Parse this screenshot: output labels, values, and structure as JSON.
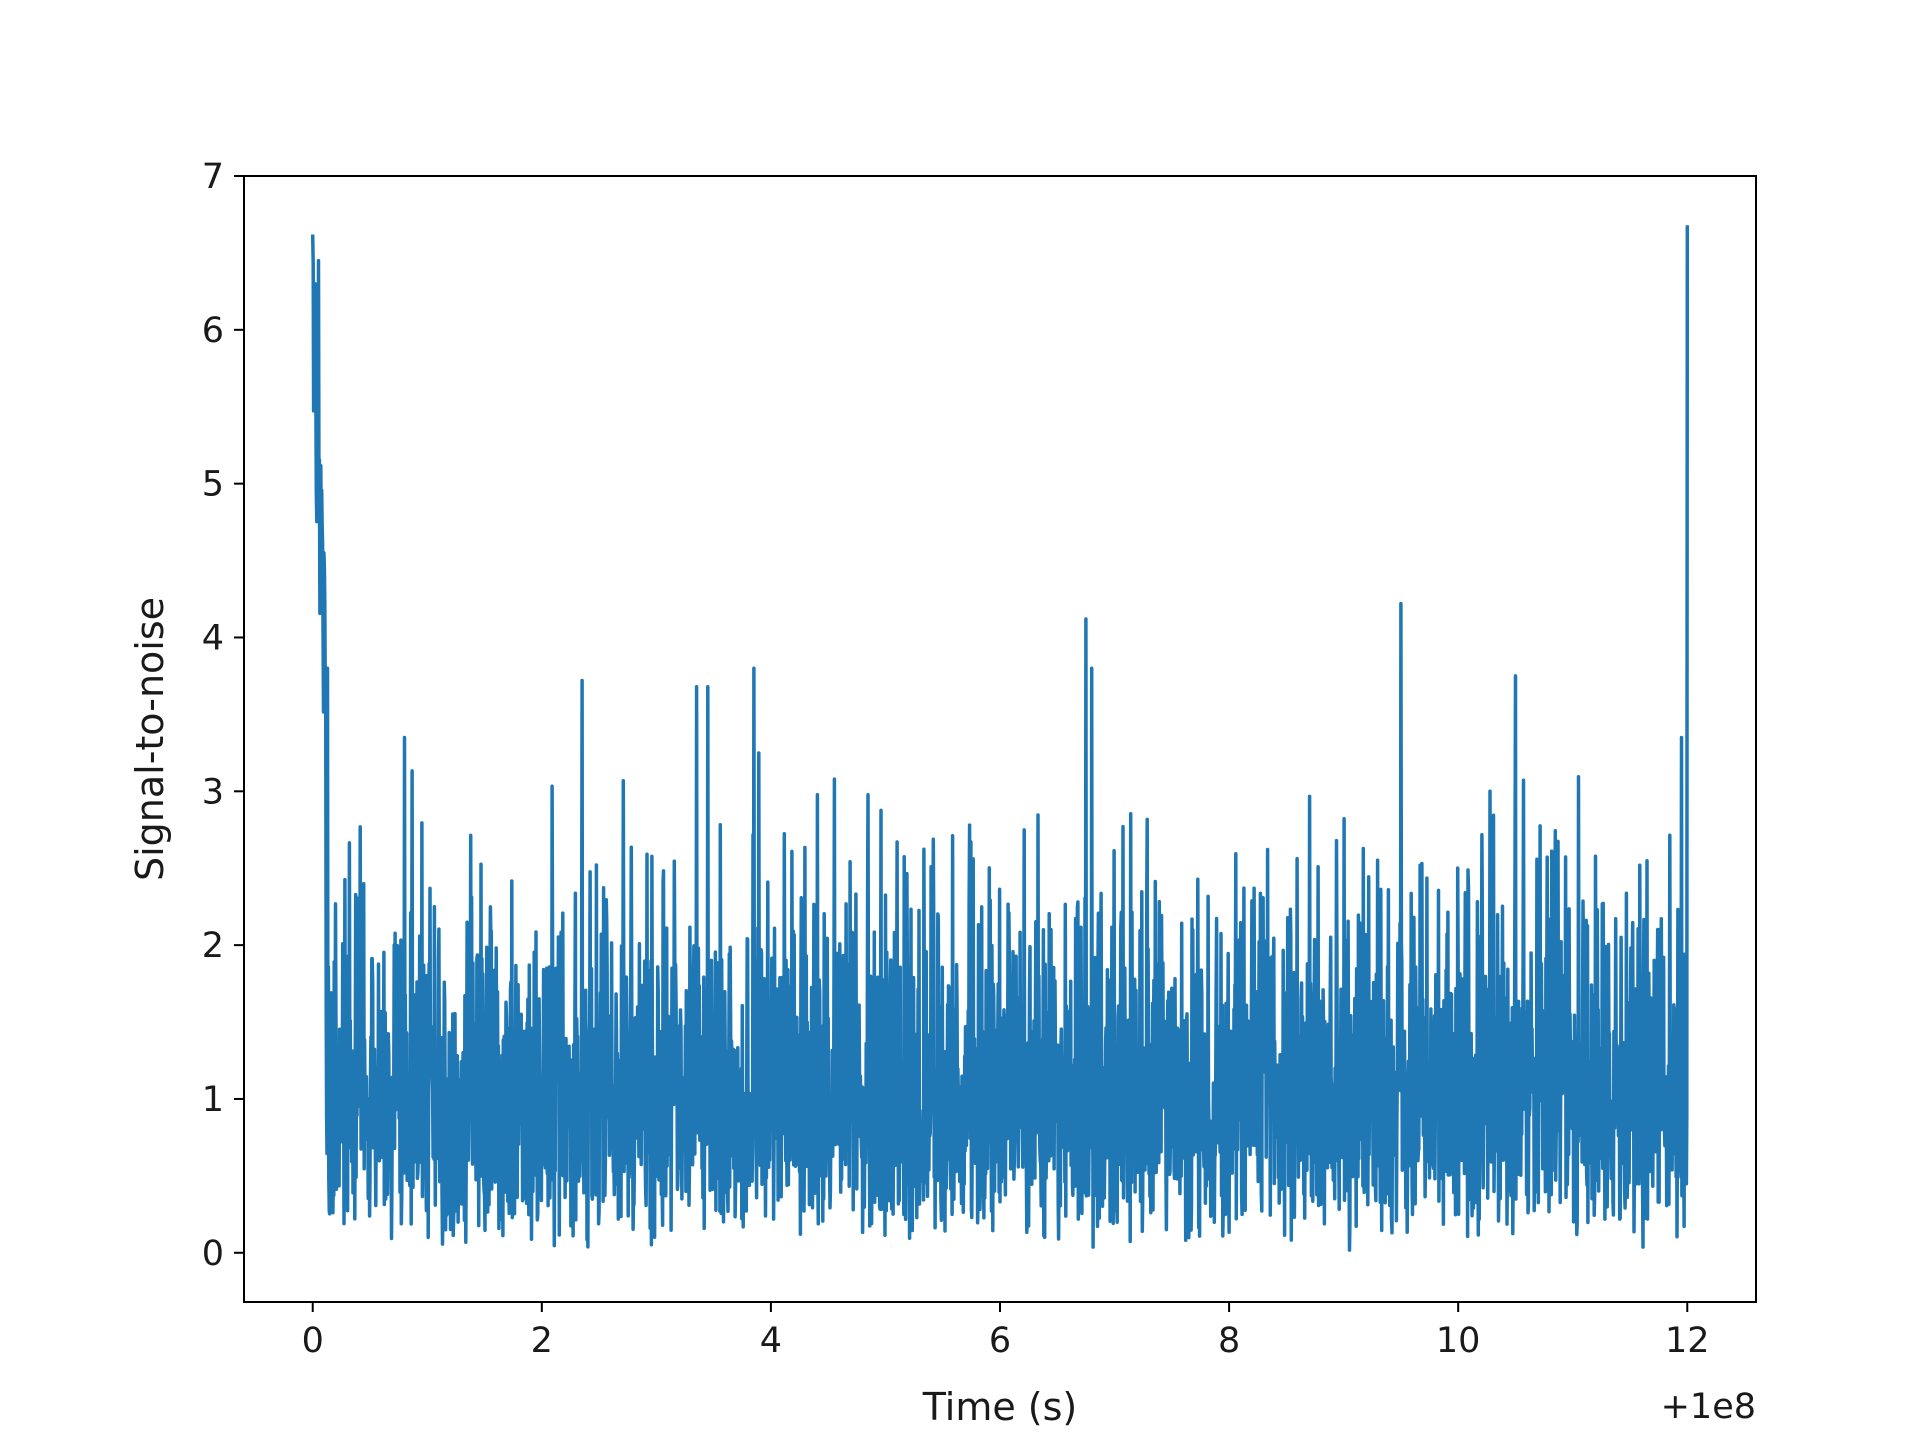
{
  "chart_data": {
    "type": "line",
    "title": "",
    "xlabel": "Time (s)",
    "ylabel": "Signal-to-noise",
    "x_offset_label": "+1e8",
    "xlim": [
      -0.6,
      12.6
    ],
    "ylim": [
      -0.32,
      7.0
    ],
    "xticks": [
      0,
      2,
      4,
      6,
      8,
      10,
      12
    ],
    "xtick_labels": [
      "0",
      "2",
      "4",
      "6",
      "8",
      "10",
      "12"
    ],
    "yticks": [
      0,
      1,
      2,
      3,
      4,
      5,
      6,
      7
    ],
    "ytick_labels": [
      "0",
      "1",
      "2",
      "3",
      "4",
      "5",
      "6",
      "7"
    ],
    "grid": false,
    "series": [
      {
        "color": "#1f77b4",
        "x_range": [
          0,
          12
        ],
        "points_per_second": 256,
        "baseline_mean": 1.1,
        "baseline_envelope": [
          0.0,
          2.4
        ],
        "peaks": [
          {
            "x": 0.0,
            "y": 6.62
          },
          {
            "x": 0.02,
            "y": 6.3
          },
          {
            "x": 0.05,
            "y": 6.45
          },
          {
            "x": 0.1,
            "y": 4.45
          },
          {
            "x": 0.13,
            "y": 3.8
          },
          {
            "x": 0.8,
            "y": 3.35
          },
          {
            "x": 2.35,
            "y": 3.72
          },
          {
            "x": 3.35,
            "y": 3.68
          },
          {
            "x": 3.45,
            "y": 3.68
          },
          {
            "x": 3.85,
            "y": 3.8
          },
          {
            "x": 6.75,
            "y": 4.12
          },
          {
            "x": 6.8,
            "y": 3.8
          },
          {
            "x": 9.5,
            "y": 4.22
          },
          {
            "x": 10.5,
            "y": 3.75
          },
          {
            "x": 11.95,
            "y": 3.35
          },
          {
            "x": 12.0,
            "y": 4.7
          },
          {
            "x": 12.0,
            "y": 6.68
          }
        ]
      }
    ]
  }
}
